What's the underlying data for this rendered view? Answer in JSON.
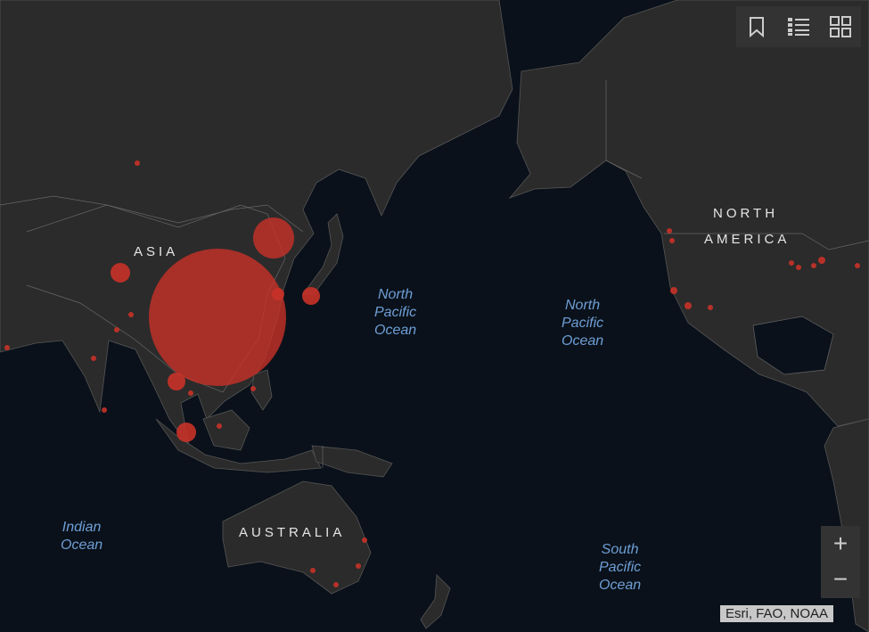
{
  "map": {
    "continent_labels": {
      "asia": "ASIA",
      "north_america_1": "NORTH",
      "north_america_2": "AMERICA",
      "australia": "AUSTRALIA"
    },
    "ocean_labels": {
      "north_pacific_1": "North\nPacific\nOcean",
      "north_pacific_2": "North\nPacific\nOcean",
      "indian": "Indian\nOcean",
      "south_pacific": "South\nPacific\nOcean"
    },
    "colors": {
      "ocean": "#0a111a",
      "land": "#2b2b2b",
      "marker": "#c83228"
    }
  },
  "toolbar": {
    "icons": [
      "bookmark-icon",
      "legend-list-icon",
      "basemap-gallery-icon"
    ]
  },
  "zoom": {
    "in": "+",
    "out": "−"
  },
  "attribution": "Esri, FAO, NOAA"
}
